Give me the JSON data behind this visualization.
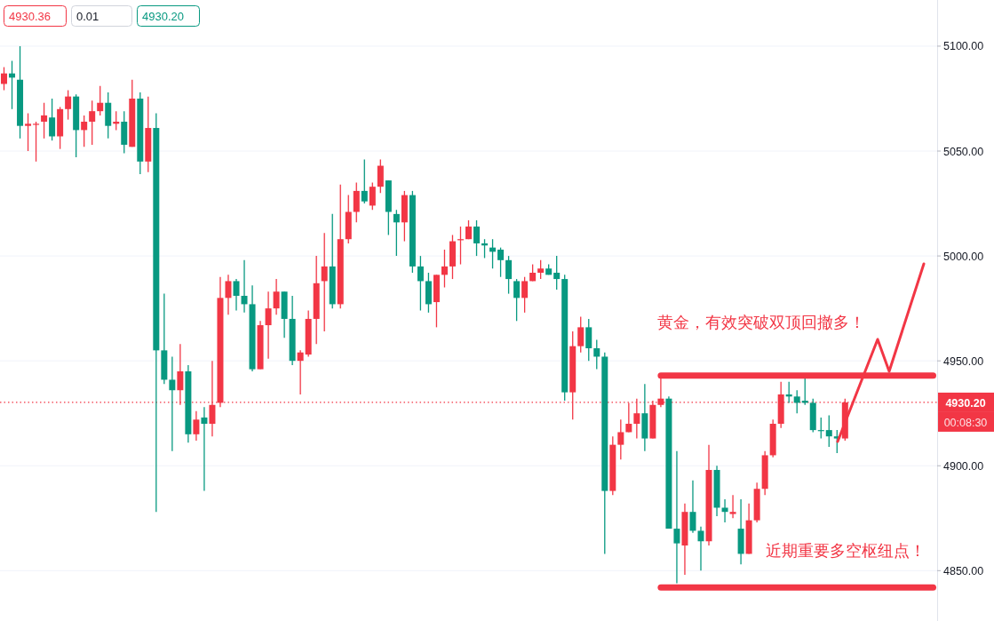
{
  "chart_data": {
    "type": "candlestick",
    "categories": [
      null,
      null,
      null,
      null,
      null,
      null,
      null,
      null,
      null,
      null,
      null,
      null,
      null,
      null,
      null,
      null,
      null,
      null,
      null,
      null,
      null,
      null,
      null,
      null,
      null,
      null,
      null,
      null,
      null,
      null,
      null,
      null,
      null,
      null,
      null,
      null,
      null,
      null,
      null,
      null,
      null,
      null,
      null,
      null,
      null,
      null,
      null,
      null,
      null,
      null,
      null,
      null,
      null,
      null,
      null,
      null,
      null,
      null,
      null,
      null,
      null,
      null,
      null,
      null,
      null,
      null,
      null,
      null,
      null,
      null,
      null,
      null,
      null,
      null,
      null,
      null,
      null,
      null,
      null,
      null,
      null,
      null,
      null,
      null,
      null,
      null,
      null,
      null,
      null,
      null,
      null,
      null,
      null,
      null,
      null,
      null,
      null,
      null,
      null,
      null,
      null,
      null,
      null,
      null,
      null,
      null,
      null,
      null,
      null,
      null,
      null,
      null,
      null,
      null,
      null,
      null,
      null
    ],
    "ohlc": [
      [
        5082,
        5090,
        5079,
        5087
      ],
      [
        5087,
        5093,
        5070,
        5085
      ],
      [
        5084,
        5100,
        5056,
        5062
      ],
      [
        5062,
        5068,
        5050,
        5063
      ],
      [
        5063,
        5064,
        5045,
        5063
      ],
      [
        5064,
        5073,
        5056,
        5067
      ],
      [
        5066,
        5075,
        5055,
        5057
      ],
      [
        5057,
        5071,
        5051,
        5070
      ],
      [
        5070,
        5079,
        5065,
        5076
      ],
      [
        5076,
        5077,
        5047,
        5060
      ],
      [
        5060,
        5067,
        5052,
        5064
      ],
      [
        5064,
        5074,
        5053,
        5069
      ],
      [
        5069,
        5081,
        5067,
        5073
      ],
      [
        5073,
        5078,
        5056,
        5062
      ],
      [
        5063,
        5069,
        5060,
        5064
      ],
      [
        5064,
        5069,
        5049,
        5053
      ],
      [
        5052,
        5084,
        5052,
        5075
      ],
      [
        5075,
        5078,
        5039,
        5045
      ],
      [
        5045,
        5076,
        5040,
        5061
      ],
      [
        5061,
        5068,
        4878,
        4955
      ],
      [
        4955,
        4982,
        4939,
        4941
      ],
      [
        4941,
        4952,
        4907,
        4936
      ],
      [
        4936,
        4958,
        4929,
        4945
      ],
      [
        4945,
        4948,
        4911,
        4915
      ],
      [
        4915,
        4926,
        4912,
        4922
      ],
      [
        4923,
        4928,
        4888,
        4920
      ],
      [
        4920,
        4950,
        4914,
        4929
      ],
      [
        4930,
        4990,
        4928,
        4980
      ],
      [
        4980,
        4991,
        4972,
        4988
      ],
      [
        4988,
        4989,
        4974,
        4981
      ],
      [
        4981,
        4998,
        4973,
        4977
      ],
      [
        4977,
        4986,
        4945,
        4946
      ],
      [
        4946,
        4969,
        4946,
        4967
      ],
      [
        4967,
        4983,
        4951,
        4975
      ],
      [
        4975,
        4989,
        4972,
        4983
      ],
      [
        4983,
        4983,
        4961,
        4970
      ],
      [
        4970,
        4981,
        4948,
        4950
      ],
      [
        4950,
        4955,
        4934,
        4954
      ],
      [
        4953,
        4974,
        4952,
        4970
      ],
      [
        4970,
        5000,
        4958,
        4987
      ],
      [
        4988,
        5011,
        4964,
        4995
      ],
      [
        4995,
        5020,
        4975,
        4977
      ],
      [
        4977,
        5034,
        4975,
        5008
      ],
      [
        5008,
        5029,
        5006,
        5021
      ],
      [
        5021,
        5035,
        5016,
        5031
      ],
      [
        5031,
        5046,
        5025,
        5026
      ],
      [
        5024,
        5035,
        5022,
        5033
      ],
      [
        5033,
        5046,
        5030,
        5043
      ],
      [
        5036,
        5036,
        5010,
        5021
      ],
      [
        5020,
        5022,
        5000,
        5016
      ],
      [
        5016,
        5031,
        5007,
        5029
      ],
      [
        5029,
        5031,
        4992,
        4995
      ],
      [
        4995,
        5000,
        4974,
        4988
      ],
      [
        4988,
        4992,
        4973,
        4977
      ],
      [
        4978,
        4991,
        4966,
        4991
      ],
      [
        4991,
        5003,
        4985,
        4995
      ],
      [
        4995,
        5010,
        4989,
        5007
      ],
      [
        5008,
        5014,
        4996,
        5008
      ],
      [
        5008,
        5017,
        5008,
        5014
      ],
      [
        5014,
        5017,
        5000,
        5006
      ],
      [
        5006,
        5008,
        4999,
        5005
      ],
      [
        5004,
        5008,
        4994,
        5002
      ],
      [
        5003,
        5004,
        4990,
        4998
      ],
      [
        4998,
        5000,
        4982,
        4989
      ],
      [
        4988,
        4989,
        4969,
        4980
      ],
      [
        4980,
        4990,
        4973,
        4988
      ],
      [
        4988,
        4996,
        4988,
        4992
      ],
      [
        4992,
        4998,
        4989,
        4994
      ],
      [
        4994,
        4996,
        4991,
        4991
      ],
      [
        4992,
        5000,
        4984,
        4989
      ],
      [
        4989,
        4991,
        4931,
        4935
      ],
      [
        4935,
        4964,
        4922,
        4957
      ],
      [
        4957,
        4971,
        4954,
        4966
      ],
      [
        4966,
        4970,
        4950,
        4956
      ],
      [
        4956,
        4960,
        4946,
        4952
      ],
      [
        4952,
        4954,
        4858,
        4888
      ],
      [
        4888,
        4914,
        4886,
        4910
      ],
      [
        4910,
        4922,
        4903,
        4916
      ],
      [
        4916,
        4930,
        4916,
        4920
      ],
      [
        4920,
        4932,
        4913,
        4925
      ],
      [
        4925,
        4939,
        4907,
        4913
      ],
      [
        4913,
        4931,
        4913,
        4929
      ],
      [
        4929,
        4944,
        4928,
        4932
      ],
      [
        4932,
        4933,
        4870,
        4870
      ],
      [
        4870,
        4907,
        4844,
        4863
      ],
      [
        4862,
        4882,
        4848,
        4878
      ],
      [
        4878,
        4893,
        4868,
        4869
      ],
      [
        4869,
        4871,
        4850,
        4864
      ],
      [
        4864,
        4910,
        4862,
        4898
      ],
      [
        4898,
        4900,
        4876,
        4880
      ],
      [
        4880,
        4884,
        4873,
        4878
      ],
      [
        4877,
        4886,
        4875,
        4878
      ],
      [
        4870,
        4884,
        4853,
        4858
      ],
      [
        4858,
        4882,
        4858,
        4874
      ],
      [
        4874,
        4892,
        4873,
        4889
      ],
      [
        4889,
        4907,
        4886,
        4905
      ],
      [
        4905,
        4922,
        4904,
        4920
      ],
      [
        4920,
        4940,
        4918,
        4934
      ],
      [
        4934,
        4940,
        4930,
        4933
      ],
      [
        4933,
        4936,
        4925,
        4930
      ],
      [
        4931,
        4942,
        4929,
        4930
      ],
      [
        4930,
        4932,
        4916,
        4917
      ],
      [
        4917,
        4923,
        4913,
        4917
      ],
      [
        4917,
        4924,
        4909,
        4914
      ],
      [
        4914,
        4917,
        4906,
        4913
      ],
      [
        4913,
        4932,
        4912,
        4930.2
      ],
      null,
      null,
      null,
      null,
      null,
      null,
      null,
      null,
      null,
      null,
      null
    ],
    "colors": [
      "#f23645",
      "#089981",
      "#089981",
      "#f23645",
      "#f23645",
      "#f23645",
      "#089981",
      "#f23645",
      "#f23645",
      "#089981",
      "#f23645",
      "#f23645",
      "#f23645",
      "#089981",
      "#f23645",
      "#089981",
      "#f23645",
      "#089981",
      "#f23645",
      "#089981",
      "#089981",
      "#089981",
      "#f23645",
      "#089981",
      "#f23645",
      "#089981",
      "#f23645",
      "#f23645",
      "#f23645",
      "#089981",
      "#089981",
      "#089981",
      "#f23645",
      "#f23645",
      "#f23645",
      "#089981",
      "#089981",
      "#f23645",
      "#f23645",
      "#f23645",
      "#f23645",
      "#089981",
      "#f23645",
      "#f23645",
      "#f23645",
      "#089981",
      "#f23645",
      "#f23645",
      "#089981",
      "#089981",
      "#f23645",
      "#089981",
      "#089981",
      "#089981",
      "#f23645",
      "#f23645",
      "#f23645",
      "#f23645",
      "#f23645",
      "#089981",
      "#089981",
      "#089981",
      "#089981",
      "#089981",
      "#089981",
      "#f23645",
      "#f23645",
      "#f23645",
      "#089981",
      "#089981",
      "#089981",
      "#f23645",
      "#f23645",
      "#089981",
      "#089981",
      "#089981",
      "#f23645",
      "#f23645",
      "#f23645",
      "#f23645",
      "#089981",
      "#f23645",
      "#f23645",
      "#089981",
      "#089981",
      "#f23645",
      "#089981",
      "#089981",
      "#f23645",
      "#089981",
      "#089981",
      "#f23645",
      "#089981",
      "#f23645",
      "#f23645",
      "#f23645",
      "#f23645",
      "#f23645",
      "#089981",
      "#089981",
      "#089981",
      "#089981",
      "#089981",
      "#089981",
      "#089981",
      "#f23645",
      null,
      null,
      null,
      null,
      null,
      null,
      null,
      null,
      null,
      null,
      null
    ],
    "series": [
      {
        "type": "line",
        "values": [
          null,
          null,
          null,
          null,
          null,
          null,
          null,
          null,
          null,
          null,
          null,
          null,
          null,
          null,
          null,
          null,
          null,
          null,
          null,
          null,
          null,
          null,
          null,
          null,
          null,
          null,
          null,
          null,
          null,
          null,
          null,
          null,
          null,
          null,
          null,
          null,
          null,
          null,
          null,
          null,
          null,
          null,
          null,
          null,
          null,
          null,
          null,
          null,
          null,
          null,
          null,
          null,
          null,
          null,
          null,
          null,
          null,
          null,
          null,
          null,
          null,
          null,
          null,
          null,
          null,
          null,
          null,
          null,
          null,
          null,
          null,
          null,
          null,
          null,
          null,
          null,
          null,
          null,
          null,
          null,
          null,
          null,
          4943,
          4943,
          4943,
          4943,
          4943,
          4943,
          4943,
          4943,
          4943,
          4943,
          4943,
          4943,
          4943,
          4943,
          4943,
          4943,
          4943,
          4943,
          4943,
          4943,
          4943,
          4943,
          4943,
          4943,
          4943,
          4943,
          4943,
          4943,
          4943,
          4943,
          4943,
          4943,
          4943,
          4943,
          4943
        ],
        "color": "#f23645"
      },
      {
        "type": "line",
        "values": [
          null,
          null,
          null,
          null,
          null,
          null,
          null,
          null,
          null,
          null,
          null,
          null,
          null,
          null,
          null,
          null,
          null,
          null,
          null,
          null,
          null,
          null,
          null,
          null,
          null,
          null,
          null,
          null,
          null,
          null,
          null,
          null,
          null,
          null,
          null,
          null,
          null,
          null,
          null,
          null,
          null,
          null,
          null,
          null,
          null,
          null,
          null,
          null,
          null,
          null,
          null,
          null,
          null,
          null,
          null,
          null,
          null,
          null,
          null,
          null,
          null,
          null,
          null,
          null,
          null,
          null,
          null,
          null,
          null,
          null,
          null,
          null,
          null,
          null,
          null,
          null,
          null,
          null,
          null,
          null,
          null,
          null,
          4842,
          4842,
          4842,
          4842,
          4842,
          4842,
          4842,
          4842,
          4842,
          4842,
          4842,
          4842,
          4842,
          4842,
          4842,
          4842,
          4842,
          4842,
          4842,
          4842,
          4842,
          4842,
          4842,
          4842,
          4842,
          4842,
          4842,
          4842,
          4842,
          4842,
          4842,
          4842,
          4842,
          4842,
          4842
        ],
        "color": "#f23645"
      }
    ],
    "ylim": [
      4826,
      5122
    ],
    "yticks": [
      {
        "value": 4850,
        "label": "4850.00"
      },
      {
        "value": 4900,
        "label": "4900.00"
      },
      {
        "value": 4950,
        "label": "4950.00"
      },
      {
        "value": 5000,
        "label": "5000.00"
      },
      {
        "value": 5050,
        "label": "5050.00"
      },
      {
        "value": 5100,
        "label": "5100.00"
      }
    ],
    "grid": "y",
    "tick_labels": "y",
    "ref_lines": [
      {
        "axis": "y",
        "value": 4930.2,
        "label": "4930.20",
        "color": "#f23645",
        "line_style": "dotted"
      }
    ],
    "annotations": [
      "4930.36",
      "0.01",
      "4930.20",
      "00:08:30",
      "黄金，有效突破双顶回撤多！",
      "近期重要多空枢纽点！"
    ]
  }
}
